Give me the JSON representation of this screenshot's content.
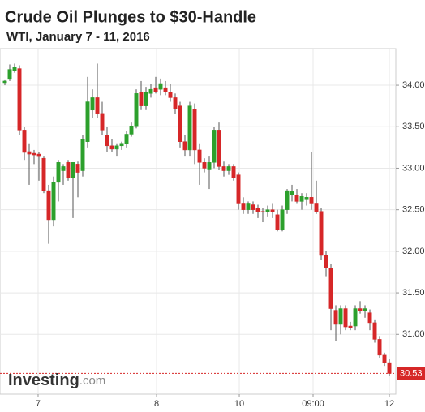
{
  "chart_data": {
    "type": "candlestick",
    "title": "Crude Oil Plunges to $30-Handle",
    "subtitle": "WTI, January 7 - 11, 2016",
    "logo_brand": "Investing",
    "logo_domain": ".com",
    "up_color": "#2ca02c",
    "down_color": "#d62728",
    "grid": true,
    "open": [
      34.03,
      34.07,
      34.17,
      34.2,
      33.46,
      33.2,
      33.18,
      33.17,
      33.12,
      32.73,
      32.38,
      32.83,
      32.97,
      33.07,
      32.88,
      33.05,
      32.97,
      33.32,
      33.7,
      33.85,
      33.66,
      33.4,
      33.27,
      33.23,
      33.27,
      33.3,
      33.41,
      33.51,
      33.92,
      33.75,
      33.9,
      33.97,
      33.95,
      33.97,
      33.92,
      33.85,
      33.75,
      33.32,
      33.22,
      33.71,
      33.22,
      33.07,
      32.99,
      33.07,
      33.46,
      33.02,
      32.97,
      33.02,
      32.92,
      32.58,
      32.5,
      32.56,
      32.52,
      32.48,
      32.47,
      32.5,
      32.44,
      32.26,
      32.5,
      32.68,
      32.68,
      32.6,
      32.63,
      32.65,
      32.58,
      32.48,
      31.95,
      31.8,
      31.29,
      31.12,
      31.31,
      31.1,
      31.1,
      31.31,
      31.28,
      31.26,
      31.14,
      30.94,
      30.75,
      30.66
    ],
    "high": [
      34.06,
      34.25,
      34.26,
      34.24,
      33.5,
      33.3,
      33.22,
      33.2,
      33.15,
      32.8,
      32.9,
      33.1,
      33.05,
      33.1,
      33.07,
      33.08,
      33.4,
      34.1,
      33.95,
      34.26,
      33.8,
      33.5,
      33.35,
      33.3,
      33.32,
      33.45,
      33.55,
      33.95,
      34.05,
      33.98,
      34.02,
      34.1,
      34.08,
      34.05,
      34.02,
      33.9,
      33.8,
      33.4,
      33.8,
      33.78,
      33.3,
      33.12,
      33.15,
      33.5,
      33.55,
      33.08,
      33.05,
      33.05,
      32.95,
      32.65,
      32.6,
      32.6,
      32.56,
      32.52,
      32.55,
      32.58,
      32.5,
      32.55,
      32.75,
      32.8,
      32.75,
      32.7,
      32.7,
      33.2,
      32.85,
      32.52,
      32.0,
      31.85,
      31.35,
      31.35,
      31.35,
      31.15,
      31.35,
      31.4,
      31.35,
      31.3,
      31.18,
      30.98,
      30.78,
      30.7
    ],
    "low": [
      34.0,
      34.05,
      34.15,
      33.4,
      33.1,
      32.8,
      33.05,
      32.85,
      32.7,
      32.09,
      32.3,
      32.6,
      32.8,
      32.85,
      32.4,
      32.65,
      32.9,
      33.25,
      33.6,
      33.6,
      33.4,
      33.2,
      33.2,
      33.15,
      33.22,
      33.25,
      33.38,
      33.48,
      33.7,
      33.7,
      33.85,
      33.9,
      33.88,
      33.88,
      33.8,
      33.65,
      33.25,
      33.15,
      33.15,
      33.05,
      32.8,
      32.95,
      32.75,
      33.0,
      32.98,
      32.9,
      32.92,
      32.85,
      32.5,
      32.45,
      32.45,
      32.45,
      32.4,
      32.35,
      32.42,
      32.4,
      32.24,
      32.24,
      32.45,
      32.6,
      32.58,
      32.5,
      32.55,
      32.5,
      32.45,
      31.9,
      31.7,
      31.05,
      30.92,
      31.0,
      31.05,
      31.05,
      31.05,
      31.25,
      31.2,
      31.05,
      30.9,
      30.72,
      30.62,
      30.5
    ],
    "close": [
      34.05,
      34.19,
      34.22,
      33.46,
      33.19,
      33.17,
      33.16,
      33.15,
      32.73,
      32.38,
      32.83,
      33.07,
      33.02,
      32.88,
      33.07,
      32.95,
      33.35,
      33.8,
      33.85,
      33.66,
      33.46,
      33.27,
      33.23,
      33.27,
      33.3,
      33.41,
      33.51,
      33.9,
      33.75,
      33.92,
      33.95,
      33.92,
      34.02,
      33.92,
      33.85,
      33.71,
      33.32,
      33.22,
      33.75,
      33.22,
      33.07,
      33.0,
      33.07,
      33.46,
      33.02,
      32.97,
      33.02,
      32.88,
      32.58,
      32.5,
      32.58,
      32.5,
      32.48,
      32.47,
      32.5,
      32.47,
      32.26,
      32.5,
      32.73,
      32.72,
      32.6,
      32.66,
      32.65,
      32.58,
      32.48,
      31.95,
      31.8,
      31.31,
      31.12,
      31.31,
      31.09,
      31.08,
      31.31,
      31.28,
      31.31,
      31.14,
      30.94,
      30.75,
      30.66,
      30.53
    ],
    "last_price": 30.53,
    "xlim": [
      -1,
      80.33
    ],
    "xticks": [
      {
        "value": 6.83,
        "label": "7"
      },
      {
        "value": 31.17,
        "label": "8"
      },
      {
        "value": 48.17,
        "label": "10"
      },
      {
        "value": 63.33,
        "label": "09:00"
      },
      {
        "value": 79,
        "label": "12"
      }
    ],
    "ylim": [
      30.28,
      34.44
    ],
    "yticks": [
      {
        "value": 31,
        "label": "31.00"
      },
      {
        "value": 31.5,
        "label": "31.50"
      },
      {
        "value": 32,
        "label": "32.00"
      },
      {
        "value": 32.5,
        "label": "32.50"
      },
      {
        "value": 33,
        "label": "33.00"
      },
      {
        "value": 33.5,
        "label": "33.50"
      },
      {
        "value": 34,
        "label": "34.00"
      }
    ]
  }
}
